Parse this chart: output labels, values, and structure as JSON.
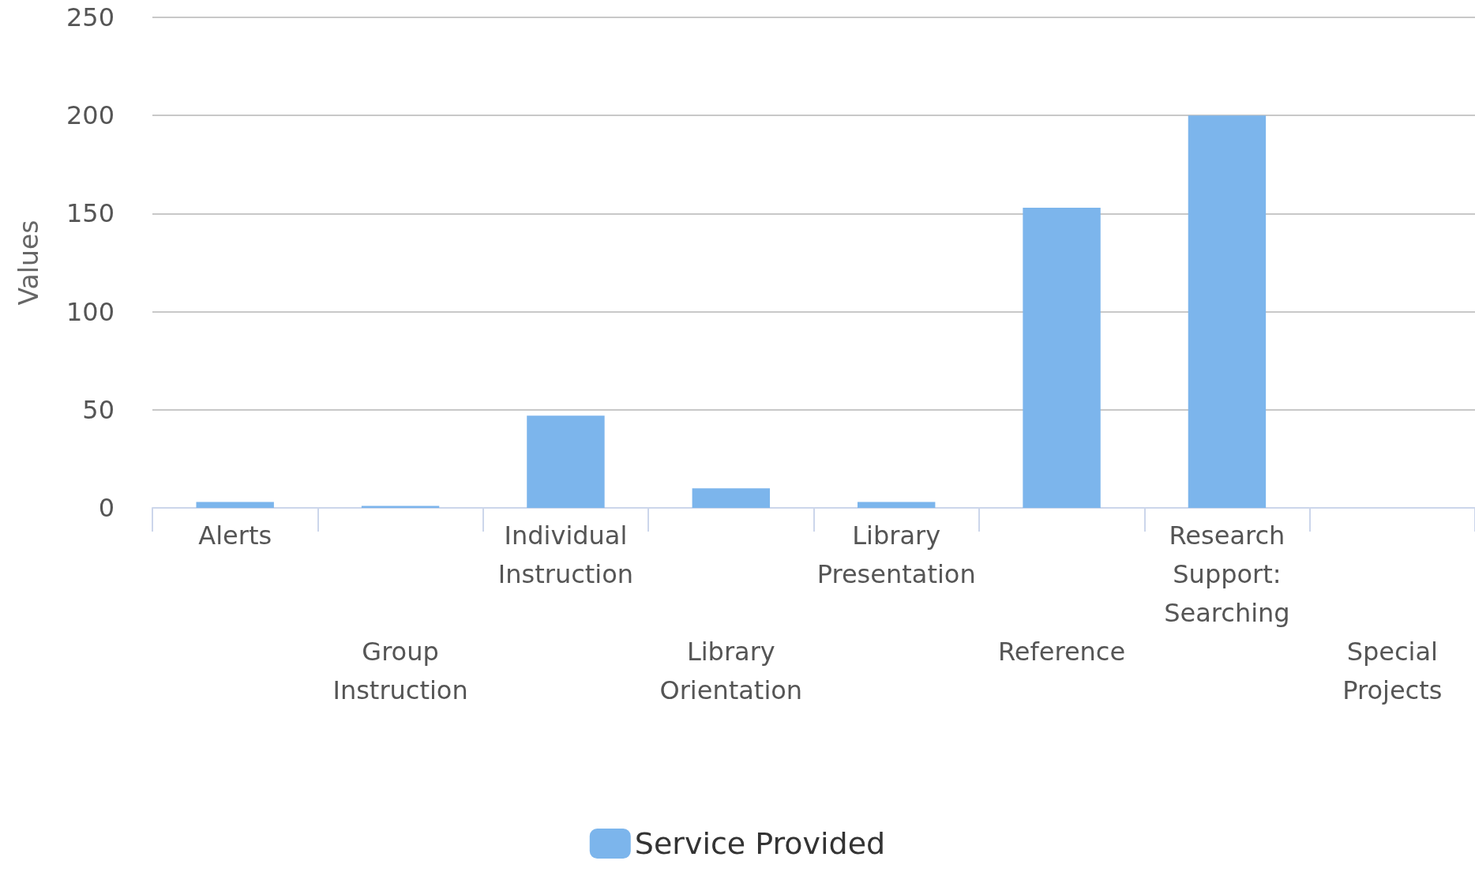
{
  "chart_data": {
    "type": "bar",
    "ylabel": "Values",
    "categories": [
      "Alerts",
      "Group Instruction",
      "Individual Instruction",
      "Library Orientation",
      "Library Presentation",
      "Reference",
      "Research Support: Searching",
      "Special Projects"
    ],
    "series": [
      {
        "name": "Service Provided",
        "color": "#7cb5ec",
        "values": [
          3,
          1,
          47,
          10,
          3,
          153,
          200,
          0
        ]
      }
    ],
    "ylim": [
      0,
      250
    ],
    "yticks": [
      0,
      50,
      100,
      150,
      200,
      250
    ],
    "grid": "y",
    "legend": "bottom"
  }
}
